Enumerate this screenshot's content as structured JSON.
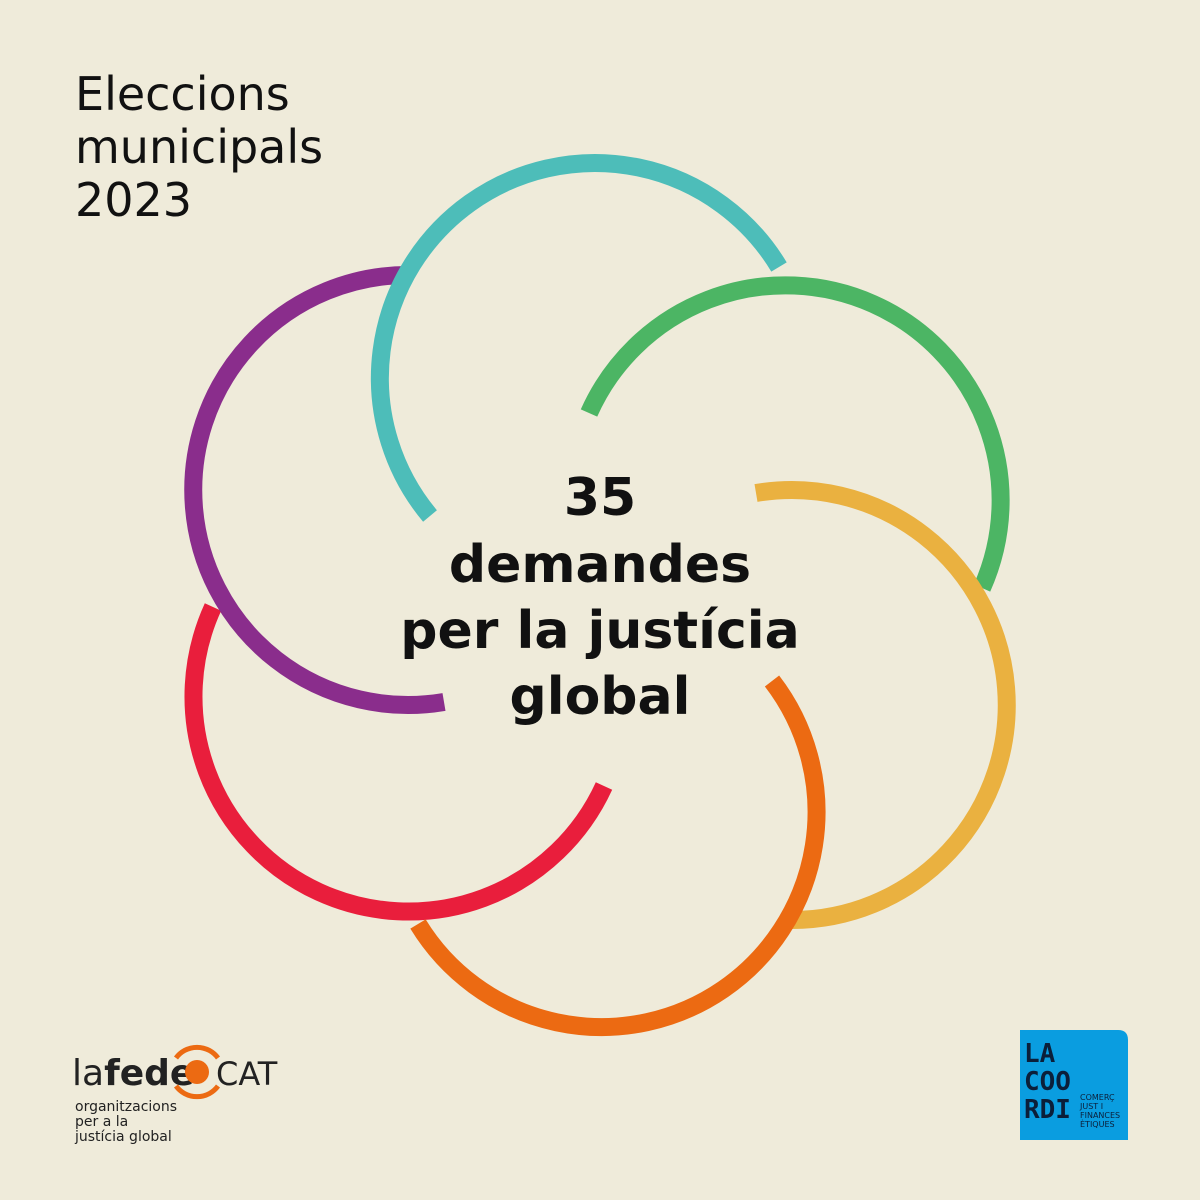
{
  "header": {
    "title_lines": [
      "Eleccions",
      "municipals",
      "2023"
    ]
  },
  "center": {
    "lines": [
      "35",
      "demandes",
      "per la justícia",
      "global"
    ]
  },
  "logos": {
    "lafede": {
      "name_light": "la",
      "name_bold": "fede",
      "suffix": "CAT",
      "tagline": [
        "organitzacions",
        "per a la",
        "justícia global"
      ]
    },
    "lacoordi": {
      "lines": [
        "LA",
        "COO",
        "RDI"
      ],
      "tagline": [
        "COMERÇ",
        "JUST I",
        "FINANCES",
        "ÈTIQUES"
      ]
    }
  }
}
